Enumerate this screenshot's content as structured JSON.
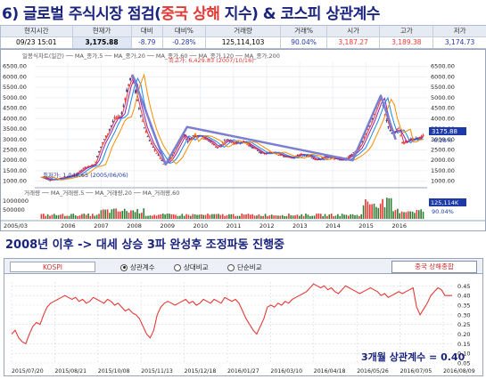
{
  "title": {
    "prefix": "6)",
    "main_a": "글로벌 주식시장 점검(",
    "main_red": "중국 상해",
    "main_b": " 지수) & 코스피 상관계수"
  },
  "quote": {
    "headers": [
      "현지시간",
      "현재가",
      "대비",
      "대비%",
      "거래량",
      "거래%",
      "시가",
      "고가",
      "저가"
    ],
    "values": [
      "09/23 15:01",
      "3,175.88",
      "-8.79",
      "-0.28%",
      "125,114,103",
      "90.04%",
      "3,187.27",
      "3,189.38",
      "3,174.73"
    ]
  },
  "price_chart": {
    "legend": "일봉식차트(일간) ── MA_종가,5 ── MA_종가,20 ── MA_종가,60 ── MA_종가,120 ── MA_종가,200",
    "high_label": "최고가: 6,429.83 (2007/10/16)",
    "low_label": "최저가: 1,047.65 (2005/06/06)",
    "right_price": "3175.88",
    "right_change": "-0.28%",
    "volume_legend": "거래량 ── MA_거래량,5 ── MA_거래량,20 ── MA_거래량,60",
    "volume_right": "125,114K",
    "volume_right_pct": "90.04%",
    "start_label": "2005/03",
    "colors": {
      "up": "#e53935",
      "down": "#1e3aa8",
      "trend": "#7b7fd0"
    }
  },
  "headline": "2008년 이후 -> 대세 상승 3파 완성후 조정파동 진행중",
  "toolbar": {
    "symbol": "KOSPI",
    "options": [
      "상관계수",
      "상대비교",
      "단순비교"
    ],
    "selected": "상관계수",
    "button": "중국 상해종합"
  },
  "corr_annotation": "3개월 상관계수 = 0.40",
  "chart_data": [
    {
      "type": "line",
      "title": "",
      "x_ticks": [
        "2006",
        "2007",
        "2008",
        "2009",
        "2010",
        "2011",
        "2012",
        "2013",
        "2014",
        "2015",
        "2016"
      ],
      "y_ticks": [
        1000,
        1500,
        2000,
        2500,
        3000,
        3500,
        4000,
        4500,
        5000,
        5500,
        6000,
        6500
      ],
      "ylim": [
        900,
        6700
      ],
      "volume_ticks": [
        500000,
        1000000
      ],
      "series": [
        {
          "name": "",
          "x": [
            2005.2,
            2005.45,
            2005.8,
            2006.2,
            2006.5,
            2006.8,
            2007.0,
            2007.2,
            2007.4,
            2007.6,
            2007.8,
            2007.95,
            2008.1,
            2008.3,
            2008.5,
            2008.7,
            2008.9,
            2009.1,
            2009.3,
            2009.5,
            2009.6,
            2009.8,
            2010.0,
            2010.3,
            2010.5,
            2010.8,
            2011.0,
            2011.3,
            2011.6,
            2011.9,
            2012.2,
            2012.5,
            2012.8,
            2013.0,
            2013.3,
            2013.5,
            2013.8,
            2014.0,
            2014.3,
            2014.6,
            2014.8,
            2015.0,
            2015.2,
            2015.45,
            2015.6,
            2015.75,
            2016.0,
            2016.1,
            2016.3,
            2016.5,
            2016.73
          ],
          "y": [
            1200,
            1050,
            1150,
            1300,
            1650,
            1800,
            2700,
            3300,
            4000,
            4100,
            5500,
            6100,
            4800,
            3600,
            2800,
            2300,
            1800,
            2100,
            2700,
            3300,
            2900,
            3200,
            3150,
            2900,
            2600,
            3000,
            2800,
            2900,
            2600,
            2300,
            2400,
            2200,
            2100,
            2300,
            2200,
            2000,
            2200,
            2100,
            2000,
            2300,
            2600,
            3300,
            4000,
            5100,
            4000,
            3300,
            3500,
            2800,
            3000,
            3000,
            3175.88
          ]
        }
      ],
      "annotations": [
        "최고가: 6,429.83 (2007/10/16)",
        "최저가: 1,047.65 (2005/06/06)"
      ]
    },
    {
      "type": "line",
      "title": "",
      "x_ticks": [
        "2015/07/20",
        "2015/08/21",
        "2015/10/08",
        "2015/11/13",
        "2015/12/18",
        "2016/01/27",
        "2016/03/10",
        "2016/04/18",
        "2016/05/26",
        "2016/07/05",
        "2016/08/09"
      ],
      "y_ticks": [
        0.05,
        0.1,
        0.15,
        0.2,
        0.25,
        0.3,
        0.35,
        0.4,
        0.45
      ],
      "ylim": [
        0.05,
        0.47
      ],
      "series": [
        {
          "name": "상관계수",
          "x": [
            0,
            4,
            8,
            12,
            16,
            20,
            24,
            28,
            32,
            36,
            40,
            44,
            48,
            52,
            56,
            60,
            64,
            68,
            72,
            76,
            80,
            84,
            88,
            92,
            96,
            100,
            104,
            108,
            112,
            116,
            120,
            124,
            128,
            132,
            136,
            140,
            144,
            148,
            152,
            156,
            160,
            164,
            168,
            172,
            176,
            180,
            184,
            188,
            192,
            196,
            200,
            204,
            208,
            212,
            216,
            220,
            224,
            228,
            232,
            236,
            240,
            244,
            248,
            252,
            256,
            260,
            264,
            268,
            272,
            276,
            280,
            284,
            288,
            292,
            296,
            300,
            304,
            308,
            312,
            316,
            320,
            324,
            328,
            332,
            336,
            340,
            344,
            348,
            352,
            356,
            360,
            364,
            368,
            372,
            376,
            380,
            384,
            388,
            392,
            396,
            400,
            404,
            408,
            412,
            416,
            420,
            424,
            428,
            432,
            436,
            440,
            444,
            448,
            452,
            456,
            460,
            464,
            468,
            472,
            476,
            480,
            484,
            488,
            492,
            496
          ],
          "y": [
            0.2,
            0.22,
            0.18,
            0.16,
            0.15,
            0.2,
            0.24,
            0.26,
            0.25,
            0.3,
            0.34,
            0.36,
            0.37,
            0.38,
            0.39,
            0.4,
            0.39,
            0.38,
            0.39,
            0.37,
            0.38,
            0.36,
            0.37,
            0.39,
            0.38,
            0.37,
            0.36,
            0.38,
            0.37,
            0.35,
            0.36,
            0.34,
            0.32,
            0.33,
            0.31,
            0.3,
            0.28,
            0.24,
            0.2,
            0.18,
            0.22,
            0.3,
            0.34,
            0.36,
            0.37,
            0.36,
            0.35,
            0.36,
            0.37,
            0.38,
            0.36,
            0.37,
            0.35,
            0.36,
            0.38,
            0.37,
            0.36,
            0.38,
            0.37,
            0.36,
            0.39,
            0.38,
            0.37,
            0.38,
            0.36,
            0.32,
            0.28,
            0.25,
            0.22,
            0.2,
            0.24,
            0.28,
            0.34,
            0.35,
            0.34,
            0.36,
            0.35,
            0.37,
            0.36,
            0.38,
            0.39,
            0.4,
            0.41,
            0.42,
            0.44,
            0.46,
            0.45,
            0.44,
            0.45,
            0.43,
            0.44,
            0.42,
            0.41,
            0.43,
            0.45,
            0.44,
            0.43,
            0.42,
            0.41,
            0.42,
            0.43,
            0.44,
            0.43,
            0.42,
            0.4,
            0.41,
            0.39,
            0.4,
            0.41,
            0.42,
            0.41,
            0.42,
            0.43,
            0.44,
            0.34,
            0.3,
            0.33,
            0.36,
            0.4,
            0.42,
            0.44,
            0.43,
            0.4,
            0.4,
            0.4
          ]
        }
      ],
      "annotations": [
        "3개월 상관계수 = 0.40"
      ]
    }
  ]
}
